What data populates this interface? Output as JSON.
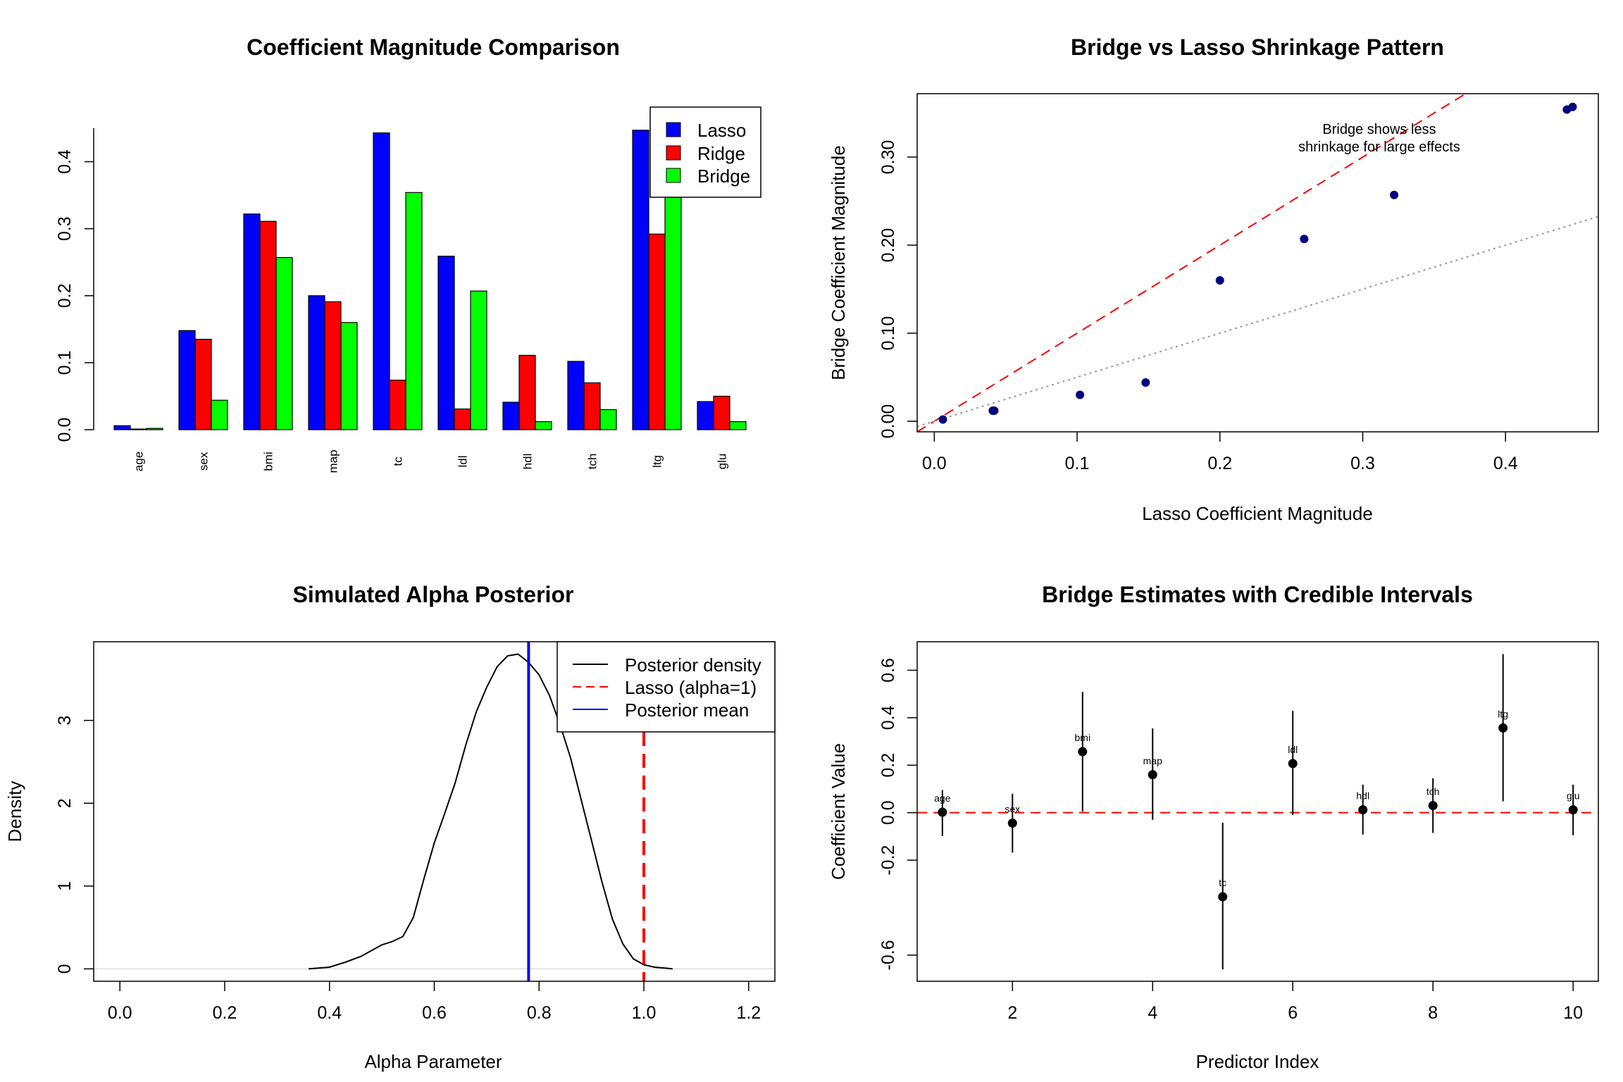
{
  "chart_data": [
    {
      "type": "bar",
      "title": "Coefficient Magnitude Comparison",
      "xlabel": "",
      "ylabel": "",
      "categories": [
        "age",
        "sex",
        "bmi",
        "map",
        "tc",
        "ldl",
        "hdl",
        "tch",
        "ltg",
        "glu"
      ],
      "series": [
        {
          "name": "Lasso",
          "color": "#0000ff",
          "values": [
            0.006,
            0.148,
            0.322,
            0.2,
            0.443,
            0.259,
            0.041,
            0.102,
            0.447,
            0.042
          ]
        },
        {
          "name": "Ridge",
          "color": "#ff0000",
          "values": [
            0.001,
            0.135,
            0.311,
            0.191,
            0.074,
            0.031,
            0.111,
            0.07,
            0.292,
            0.05
          ]
        },
        {
          "name": "Bridge",
          "color": "#00ff00",
          "values": [
            0.002,
            0.044,
            0.257,
            0.16,
            0.354,
            0.207,
            0.012,
            0.03,
            0.357,
            0.012
          ]
        }
      ],
      "ylim": [
        0,
        0.45
      ],
      "yticks": [
        "0.0",
        "0.1",
        "0.2",
        "0.3",
        "0.4"
      ],
      "legend_position": "top-right"
    },
    {
      "type": "scatter",
      "title": "Bridge vs Lasso Shrinkage Pattern",
      "xlabel": "Lasso Coefficient Magnitude",
      "ylabel": "Bridge Coefficient Magnitude",
      "points": [
        {
          "x": 0.006,
          "y": 0.002
        },
        {
          "x": 0.041,
          "y": 0.012
        },
        {
          "x": 0.042,
          "y": 0.012
        },
        {
          "x": 0.102,
          "y": 0.03
        },
        {
          "x": 0.148,
          "y": 0.044
        },
        {
          "x": 0.2,
          "y": 0.16
        },
        {
          "x": 0.259,
          "y": 0.207
        },
        {
          "x": 0.322,
          "y": 0.257
        },
        {
          "x": 0.443,
          "y": 0.354
        },
        {
          "x": 0.447,
          "y": 0.357
        }
      ],
      "point_color": "#000080",
      "reference_lines": [
        {
          "style": "dashed",
          "color": "#ff0000",
          "slope": 1,
          "intercept": 0
        },
        {
          "style": "dotted",
          "color": "#999999",
          "slope": 0.5,
          "intercept": 0
        }
      ],
      "xlim": [
        -0.012,
        0.465
      ],
      "ylim": [
        -0.012,
        0.372
      ],
      "xticks": [
        "0.0",
        "0.1",
        "0.2",
        "0.3",
        "0.4"
      ],
      "yticks": [
        "0.00",
        "0.10",
        "0.20",
        "0.30"
      ],
      "annotation": [
        "Bridge shows less",
        "shrinkage for large effects"
      ]
    },
    {
      "type": "line",
      "title": "Simulated Alpha Posterior",
      "xlabel": "Alpha Parameter",
      "ylabel": "Density",
      "series": [
        {
          "name": "Posterior density",
          "color": "#000000",
          "x": [
            0.36,
            0.4,
            0.43,
            0.46,
            0.48,
            0.5,
            0.52,
            0.54,
            0.56,
            0.58,
            0.6,
            0.62,
            0.64,
            0.66,
            0.68,
            0.7,
            0.72,
            0.74,
            0.76,
            0.78,
            0.8,
            0.82,
            0.84,
            0.86,
            0.88,
            0.9,
            0.92,
            0.94,
            0.96,
            0.98,
            1.0,
            1.02,
            1.04,
            1.055
          ],
          "y": [
            0.0,
            0.02,
            0.08,
            0.15,
            0.22,
            0.29,
            0.33,
            0.39,
            0.62,
            1.08,
            1.52,
            1.88,
            2.25,
            2.7,
            3.1,
            3.4,
            3.65,
            3.78,
            3.8,
            3.7,
            3.55,
            3.3,
            2.95,
            2.55,
            2.05,
            1.55,
            1.05,
            0.6,
            0.3,
            0.12,
            0.05,
            0.02,
            0.01,
            0.0
          ]
        }
      ],
      "vlines": [
        {
          "name": "Lasso (alpha=1)",
          "x": 1.0,
          "color": "#ff0000",
          "style": "dashed"
        },
        {
          "name": "Posterior mean",
          "x": 0.78,
          "color": "#0000ff",
          "style": "solid"
        }
      ],
      "xlim": [
        -0.05,
        1.25
      ],
      "ylim": [
        -0.15,
        3.95
      ],
      "xticks": [
        "0.0",
        "0.2",
        "0.4",
        "0.6",
        "0.8",
        "1.0",
        "1.2"
      ],
      "yticks": [
        "0",
        "1",
        "2",
        "3"
      ],
      "legend": [
        "Posterior density",
        "Lasso (alpha=1)",
        "Posterior mean"
      ],
      "legend_position": "top-right"
    },
    {
      "type": "scatter",
      "title": "Bridge Estimates with Credible Intervals",
      "xlabel": "Predictor Index",
      "ylabel": "Coefficient Value",
      "points": [
        {
          "x": 1,
          "y": 0.002,
          "lower": -0.098,
          "upper": 0.095,
          "label": "age"
        },
        {
          "x": 2,
          "y": -0.044,
          "lower": -0.168,
          "upper": 0.08,
          "label": "sex"
        },
        {
          "x": 3,
          "y": 0.257,
          "lower": 0.005,
          "upper": 0.509,
          "label": "bmi"
        },
        {
          "x": 4,
          "y": 0.16,
          "lower": -0.03,
          "upper": 0.355,
          "label": "map"
        },
        {
          "x": 5,
          "y": -0.354,
          "lower": -0.66,
          "upper": -0.042,
          "label": "tc"
        },
        {
          "x": 6,
          "y": 0.207,
          "lower": -0.01,
          "upper": 0.429,
          "label": "ldl"
        },
        {
          "x": 7,
          "y": 0.012,
          "lower": -0.092,
          "upper": 0.118,
          "label": "hdl"
        },
        {
          "x": 8,
          "y": 0.03,
          "lower": -0.085,
          "upper": 0.145,
          "label": "tch"
        },
        {
          "x": 9,
          "y": 0.357,
          "lower": 0.048,
          "upper": 0.668,
          "label": "ltg"
        },
        {
          "x": 10,
          "y": 0.012,
          "lower": -0.095,
          "upper": 0.118,
          "label": "glu"
        }
      ],
      "reference_lines": [
        {
          "style": "dashed",
          "color": "#ff0000",
          "y": 0
        }
      ],
      "xlim": [
        0.64,
        10.36
      ],
      "ylim": [
        -0.71,
        0.72
      ],
      "xticks": [
        "2",
        "4",
        "6",
        "8",
        "10"
      ],
      "yticks": [
        "-0.6",
        "-0.2",
        "0.0",
        "0.2",
        "0.4",
        "0.6"
      ]
    }
  ]
}
